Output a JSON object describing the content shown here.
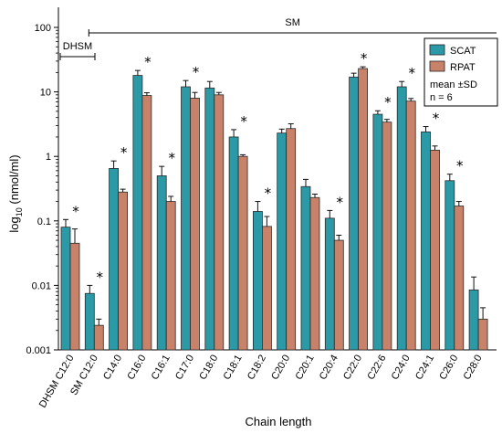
{
  "chart_data": {
    "type": "bar",
    "y_scale": "log",
    "ylim": [
      0.001,
      100
    ],
    "yticks": [
      "0.001",
      "0.01",
      "0.1",
      "1",
      "10",
      "100"
    ],
    "categories": [
      "DHSM C12:0",
      "SM C12:0",
      "C14:0",
      "C16:0",
      "C16:1",
      "C17:0",
      "C18:0",
      "C18:1",
      "C18:2",
      "C20:0",
      "C20:1",
      "C20:4",
      "C22:0",
      "C22:6",
      "C24:0",
      "C24:1",
      "C26:0",
      "C28:0"
    ],
    "series": [
      {
        "name": "SCAT",
        "color": "#2c9aa6",
        "values": [
          0.08,
          0.0075,
          0.65,
          18,
          0.5,
          12,
          11.5,
          2.0,
          0.14,
          2.3,
          0.34,
          0.11,
          17,
          4.5,
          12,
          2.4,
          0.42,
          0.0085
        ],
        "errors": [
          0.025,
          0.0025,
          0.2,
          3.5,
          0.2,
          3.0,
          3.0,
          0.6,
          0.06,
          0.35,
          0.1,
          0.035,
          2.5,
          0.6,
          2.5,
          0.5,
          0.11,
          0.005
        ]
      },
      {
        "name": "RPAT",
        "color": "#c8826a",
        "values": [
          0.045,
          0.0024,
          0.28,
          8.8,
          0.2,
          8.0,
          9.0,
          1.0,
          0.082,
          2.7,
          0.23,
          0.05,
          23,
          3.4,
          7.2,
          1.25,
          0.17,
          0.003
        ],
        "errors": [
          0.03,
          0.0006,
          0.03,
          0.9,
          0.04,
          1.8,
          0.8,
          0.06,
          0.035,
          0.5,
          0.03,
          0.01,
          1.5,
          0.35,
          0.7,
          0.2,
          0.03,
          0.0015
        ]
      }
    ],
    "significant": [
      true,
      true,
      true,
      true,
      true,
      true,
      false,
      true,
      true,
      false,
      false,
      true,
      true,
      true,
      true,
      true,
      true,
      false
    ],
    "xlabel": "Chain length",
    "ylabel": "log10 (nmol/ml)",
    "legend": {
      "position": "top-right",
      "entries": [
        "SCAT",
        "RPAT"
      ],
      "note_lines": [
        "mean ±SD",
        "n = 6"
      ]
    },
    "group_labels": [
      {
        "text": "DHSM",
        "from": 0,
        "to": 0
      },
      {
        "text": "SM",
        "from": 1,
        "to": 17
      }
    ],
    "significance_marker": "*"
  }
}
